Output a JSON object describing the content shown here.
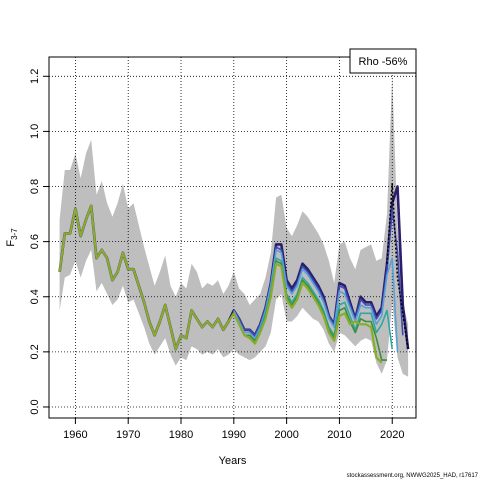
{
  "chart_data": {
    "type": "line",
    "title": "",
    "xlabel": "Years",
    "ylabel_main": "F",
    "ylabel_sub": "3-7",
    "xlim": [
      1955,
      2024.5
    ],
    "ylim": [
      -0.04,
      1.27
    ],
    "x_ticks": [
      1960,
      1970,
      1980,
      1990,
      2000,
      2010,
      2020
    ],
    "y_ticks": [
      0.0,
      0.2,
      0.4,
      0.6,
      0.8,
      1.0,
      1.2
    ],
    "y_tick_labels": [
      "0.0",
      "0.2",
      "0.4",
      "0.6",
      "0.8",
      "1.0",
      "1.2"
    ],
    "grid": true,
    "legend": {
      "placement": "top-right",
      "text": "Rho -56%"
    },
    "footer": "stockassessment.org, NWWG2025_HAD, r17617",
    "band": {
      "color": "#bebebe",
      "years": [
        1957,
        1958,
        1959,
        1960,
        1961,
        1962,
        1963,
        1964,
        1965,
        1966,
        1967,
        1968,
        1969,
        1970,
        1971,
        1972,
        1973,
        1974,
        1975,
        1976,
        1977,
        1978,
        1979,
        1980,
        1981,
        1982,
        1983,
        1984,
        1985,
        1986,
        1987,
        1988,
        1989,
        1990,
        1991,
        1992,
        1993,
        1994,
        1995,
        1996,
        1997,
        1998,
        1999,
        2000,
        2001,
        2002,
        2003,
        2004,
        2005,
        2006,
        2007,
        2008,
        2009,
        2010,
        2011,
        2012,
        2013,
        2014,
        2015,
        2016,
        2017,
        2018,
        2019,
        2020,
        2021,
        2022,
        2023
      ],
      "upper": [
        0.68,
        0.86,
        0.86,
        0.92,
        0.83,
        0.92,
        0.97,
        0.77,
        0.82,
        0.74,
        0.69,
        0.74,
        0.81,
        0.72,
        0.74,
        0.66,
        0.58,
        0.51,
        0.44,
        0.49,
        0.55,
        0.44,
        0.4,
        0.45,
        0.43,
        0.52,
        0.49,
        0.43,
        0.45,
        0.44,
        0.46,
        0.41,
        0.44,
        0.49,
        0.43,
        0.41,
        0.37,
        0.39,
        0.41,
        0.47,
        0.56,
        0.76,
        0.77,
        0.65,
        0.62,
        0.66,
        0.71,
        0.69,
        0.66,
        0.63,
        0.59,
        0.53,
        0.45,
        0.59,
        0.6,
        0.54,
        0.5,
        0.57,
        0.58,
        0.59,
        0.53,
        0.54,
        0.7,
        1.2,
        0.66,
        0.38,
        0.3
      ],
      "lower": [
        0.35,
        0.47,
        0.48,
        0.53,
        0.47,
        0.53,
        0.57,
        0.42,
        0.45,
        0.41,
        0.37,
        0.39,
        0.44,
        0.38,
        0.39,
        0.34,
        0.29,
        0.23,
        0.19,
        0.22,
        0.25,
        0.19,
        0.15,
        0.18,
        0.17,
        0.22,
        0.21,
        0.19,
        0.2,
        0.19,
        0.21,
        0.18,
        0.19,
        0.21,
        0.19,
        0.18,
        0.17,
        0.18,
        0.2,
        0.22,
        0.27,
        0.39,
        0.41,
        0.31,
        0.31,
        0.33,
        0.36,
        0.34,
        0.32,
        0.31,
        0.28,
        0.23,
        0.2,
        0.27,
        0.26,
        0.24,
        0.22,
        0.24,
        0.25,
        0.24,
        0.16,
        0.12,
        0.17,
        0.38,
        0.18,
        0.12,
        0.11
      ]
    },
    "series": [
      {
        "color": "#2a1e6e",
        "width": 2.6,
        "x": [
          1957,
          1958,
          1959,
          1960,
          1961,
          1962,
          1963,
          1964,
          1965,
          1966,
          1967,
          1968,
          1969,
          1970,
          1971,
          1972,
          1973,
          1974,
          1975,
          1976,
          1977,
          1978,
          1979,
          1980,
          1981,
          1982,
          1983,
          1984,
          1985,
          1986,
          1987,
          1988,
          1989,
          1990,
          1991,
          1992,
          1993,
          1994,
          1995,
          1996,
          1997,
          1998,
          1999,
          2000,
          2001,
          2002,
          2003,
          2004,
          2005,
          2006,
          2007,
          2008,
          2009,
          2010,
          2011,
          2012,
          2013,
          2014,
          2015,
          2016,
          2017,
          2018,
          2019,
          2020,
          2021,
          2022,
          2023
        ],
        "values": [
          0.49,
          0.63,
          0.63,
          0.72,
          0.62,
          0.68,
          0.73,
          0.54,
          0.57,
          0.54,
          0.46,
          0.49,
          0.56,
          0.5,
          0.5,
          0.44,
          0.38,
          0.31,
          0.26,
          0.31,
          0.37,
          0.29,
          0.21,
          0.26,
          0.25,
          0.35,
          0.32,
          0.29,
          0.31,
          0.29,
          0.32,
          0.28,
          0.31,
          0.35,
          0.32,
          0.28,
          0.28,
          0.26,
          0.3,
          0.36,
          0.45,
          0.59,
          0.59,
          0.46,
          0.43,
          0.46,
          0.52,
          0.5,
          0.47,
          0.44,
          0.4,
          0.33,
          0.3,
          0.45,
          0.44,
          0.38,
          0.32,
          0.4,
          0.38,
          0.38,
          0.33,
          0.36,
          0.52,
          0.74,
          0.8,
          0.37,
          0.21
        ]
      },
      {
        "color": "#3d4bb0",
        "width": 1.6,
        "x": [
          1990,
          1991,
          1992,
          1993,
          1994,
          1995,
          1996,
          1997,
          1998,
          1999,
          2000,
          2001,
          2002,
          2003,
          2004,
          2005,
          2006,
          2007,
          2008,
          2009,
          2010,
          2011,
          2012,
          2013,
          2014,
          2015,
          2016,
          2017,
          2018,
          2019,
          2020,
          2021,
          2022
        ],
        "values": [
          0.35,
          0.32,
          0.28,
          0.28,
          0.26,
          0.3,
          0.36,
          0.45,
          0.58,
          0.57,
          0.45,
          0.42,
          0.45,
          0.51,
          0.49,
          0.46,
          0.43,
          0.39,
          0.33,
          0.3,
          0.44,
          0.43,
          0.37,
          0.32,
          0.39,
          0.37,
          0.37,
          0.32,
          0.35,
          0.5,
          0.72,
          0.56,
          0.26
        ]
      },
      {
        "color": "#5aa0d8",
        "width": 1.6,
        "x": [
          1990,
          1991,
          1992,
          1993,
          1994,
          1995,
          1996,
          1997,
          1998,
          1999,
          2000,
          2001,
          2002,
          2003,
          2004,
          2005,
          2006,
          2007,
          2008,
          2009,
          2010,
          2011,
          2012,
          2013,
          2014,
          2015,
          2016,
          2017,
          2018,
          2019,
          2020,
          2021
        ],
        "values": [
          0.35,
          0.31,
          0.27,
          0.27,
          0.25,
          0.29,
          0.35,
          0.44,
          0.57,
          0.56,
          0.44,
          0.41,
          0.44,
          0.5,
          0.48,
          0.45,
          0.42,
          0.38,
          0.32,
          0.29,
          0.42,
          0.41,
          0.36,
          0.31,
          0.37,
          0.36,
          0.36,
          0.3,
          0.33,
          0.48,
          0.54,
          0.2
        ]
      },
      {
        "color": "#2fa8a0",
        "width": 1.6,
        "x": [
          1990,
          1991,
          1992,
          1993,
          1994,
          1995,
          1996,
          1997,
          1998,
          1999,
          2000,
          2001,
          2002,
          2003,
          2004,
          2005,
          2006,
          2007,
          2008,
          2009,
          2010,
          2011,
          2012,
          2013,
          2014,
          2015,
          2016,
          2017,
          2018,
          2019,
          2020
        ],
        "values": [
          0.34,
          0.3,
          0.26,
          0.26,
          0.24,
          0.28,
          0.34,
          0.42,
          0.54,
          0.53,
          0.41,
          0.38,
          0.41,
          0.47,
          0.45,
          0.42,
          0.39,
          0.35,
          0.29,
          0.26,
          0.37,
          0.38,
          0.33,
          0.28,
          0.34,
          0.34,
          0.34,
          0.27,
          0.3,
          0.35,
          0.21
        ]
      },
      {
        "color": "#3c8f3c",
        "width": 1.6,
        "x": [
          1990,
          1991,
          1992,
          1993,
          1994,
          1995,
          1996,
          1997,
          1998,
          1999,
          2000,
          2001,
          2002,
          2003,
          2004,
          2005,
          2006,
          2007,
          2008,
          2009,
          2010,
          2011,
          2012,
          2013,
          2014,
          2015,
          2016,
          2017,
          2018,
          2019
        ],
        "values": [
          0.34,
          0.3,
          0.26,
          0.26,
          0.24,
          0.27,
          0.33,
          0.41,
          0.53,
          0.52,
          0.4,
          0.37,
          0.4,
          0.46,
          0.44,
          0.41,
          0.38,
          0.34,
          0.28,
          0.25,
          0.35,
          0.36,
          0.31,
          0.27,
          0.32,
          0.31,
          0.31,
          0.25,
          0.17,
          0.17
        ]
      },
      {
        "color": "#8aac2c",
        "width": 2.2,
        "x": [
          1957,
          1958,
          1959,
          1960,
          1961,
          1962,
          1963,
          1964,
          1965,
          1966,
          1967,
          1968,
          1969,
          1970,
          1971,
          1972,
          1973,
          1974,
          1975,
          1976,
          1977,
          1978,
          1979,
          1980,
          1981,
          1982,
          1983,
          1984,
          1985,
          1986,
          1987,
          1988,
          1989,
          1990,
          1991,
          1992,
          1993,
          1994,
          1995,
          1996,
          1997,
          1998,
          1999,
          2000,
          2001,
          2002,
          2003,
          2004,
          2005,
          2006,
          2007,
          2008,
          2009,
          2010,
          2011,
          2012,
          2013,
          2014,
          2015,
          2016,
          2017,
          2018
        ],
        "values": [
          0.49,
          0.63,
          0.63,
          0.72,
          0.62,
          0.68,
          0.73,
          0.54,
          0.57,
          0.54,
          0.46,
          0.49,
          0.56,
          0.5,
          0.5,
          0.44,
          0.38,
          0.31,
          0.26,
          0.31,
          0.37,
          0.29,
          0.21,
          0.26,
          0.25,
          0.35,
          0.32,
          0.29,
          0.31,
          0.29,
          0.32,
          0.28,
          0.31,
          0.34,
          0.3,
          0.26,
          0.25,
          0.23,
          0.27,
          0.32,
          0.4,
          0.52,
          0.51,
          0.39,
          0.36,
          0.39,
          0.45,
          0.43,
          0.4,
          0.37,
          0.33,
          0.27,
          0.24,
          0.33,
          0.34,
          0.3,
          0.31,
          0.3,
          0.3,
          0.29,
          0.18,
          0.16
        ]
      }
    ],
    "dotted_series": {
      "color": "#000000",
      "x": [
        2019,
        2020,
        2021,
        2022,
        2023
      ],
      "values": [
        0.52,
        0.81,
        0.47,
        0.34,
        0.21
      ]
    }
  }
}
